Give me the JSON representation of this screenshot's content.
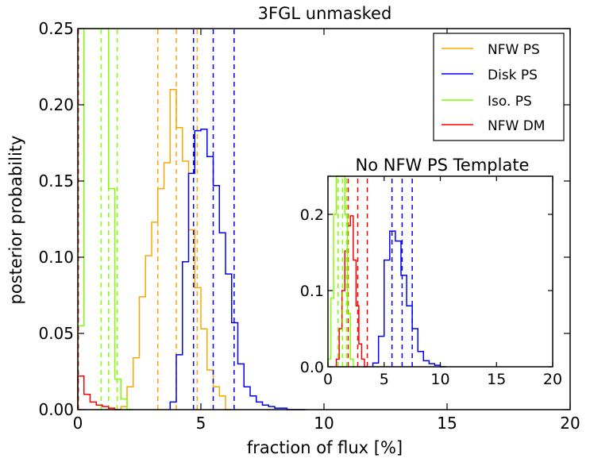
{
  "chart_data": [
    {
      "type": "step-histogram",
      "title": "3FGL unmasked",
      "xlabel": "fraction of flux [%]",
      "ylabel": "posterior probability",
      "xlim": [
        0,
        20
      ],
      "ylim": [
        0,
        0.25
      ],
      "xticks": [
        0,
        5,
        10,
        15,
        20
      ],
      "yticks": [
        0.0,
        0.05,
        0.1,
        0.15,
        0.2,
        0.25
      ],
      "xtick_labels": [
        "0",
        "5",
        "10",
        "15",
        "20"
      ],
      "ytick_labels": [
        "0.00",
        "0.05",
        "0.10",
        "0.15",
        "0.20",
        "0.25"
      ],
      "legend_position": "top-right",
      "legend": [
        {
          "name": "NFW PS",
          "color": "#ffa500"
        },
        {
          "name": "Disk PS",
          "color": "#0000ff"
        },
        {
          "name": "Iso. PS",
          "color": "#7fff00"
        },
        {
          "name": "NFW DM",
          "color": "#ff0000"
        }
      ],
      "series": [
        {
          "name": "NFW PS",
          "color": "#ffa500",
          "bin_width": 0.25,
          "edges_start": 1.75,
          "values": [
            0.002,
            0.015,
            0.034,
            0.074,
            0.101,
            0.123,
            0.145,
            0.162,
            0.21,
            0.185,
            0.163,
            0.118,
            0.08,
            0.053,
            0.026,
            0.015,
            0.009,
            0.0
          ],
          "quantiles": [
            3.25,
            4.0,
            4.85
          ]
        },
        {
          "name": "Disk PS",
          "color": "#0000ff",
          "bin_width": 0.25,
          "edges_start": 3.75,
          "values": [
            0.005,
            0.036,
            0.097,
            0.155,
            0.183,
            0.184,
            0.166,
            0.147,
            0.116,
            0.089,
            0.057,
            0.03,
            0.015,
            0.009,
            0.005,
            0.003,
            0.002,
            0.001,
            0.001,
            0.0,
            0.0,
            0.0
          ],
          "quantiles": [
            4.7,
            5.5,
            6.35
          ]
        },
        {
          "name": "Iso. PS",
          "color": "#7fff00",
          "bin_width": 0.25,
          "edges_start": 0.0,
          "values": [
            0.055,
            0.25,
            0.25,
            0.25,
            0.25,
            0.145,
            0.02,
            0.007,
            0.0
          ],
          "quantiles": [
            0.95,
            1.25,
            1.6
          ]
        },
        {
          "name": "NFW DM",
          "color": "#ff0000",
          "bin_width": 0.25,
          "edges_start": 0.0,
          "values": [
            0.022,
            0.01,
            0.005,
            0.003,
            0.002,
            0.001,
            0.0
          ],
          "quantiles": [
            0.02
          ]
        }
      ]
    },
    {
      "type": "step-histogram",
      "title": "No NFW PS Template",
      "xlim": [
        0,
        20
      ],
      "ylim": [
        0,
        0.25
      ],
      "xticks": [
        0,
        5,
        10,
        15,
        20
      ],
      "yticks": [
        0.0,
        0.1,
        0.2
      ],
      "xtick_labels": [
        "0",
        "5",
        "10",
        "15",
        "20"
      ],
      "ytick_labels": [
        "0.0",
        "0.1",
        "0.2"
      ],
      "series": [
        {
          "name": "Disk PS",
          "color": "#0000ff",
          "bin_width": 0.5,
          "edges_start": 4.0,
          "values": [
            0.005,
            0.04,
            0.14,
            0.178,
            0.165,
            0.12,
            0.08,
            0.05,
            0.02,
            0.008,
            0.004,
            0.002,
            0.0
          ],
          "quantiles": [
            5.7,
            6.6,
            7.5
          ]
        },
        {
          "name": "NFW DM",
          "color": "#ff0000",
          "bin_width": 0.25,
          "edges_start": 0.75,
          "values": [
            0.01,
            0.05,
            0.1,
            0.152,
            0.185,
            0.198,
            0.14,
            0.08,
            0.03,
            0.01,
            0.0
          ],
          "quantiles": [
            1.8,
            2.65,
            3.5
          ]
        },
        {
          "name": "Iso. PS",
          "color": "#7fff00",
          "bin_width": 0.25,
          "edges_start": 0.0,
          "values": [
            0.01,
            0.09,
            0.2,
            0.25,
            0.25,
            0.25,
            0.2,
            0.07,
            0.01,
            0.0
          ],
          "quantiles": [
            0.9,
            1.3,
            1.65
          ]
        }
      ]
    }
  ]
}
